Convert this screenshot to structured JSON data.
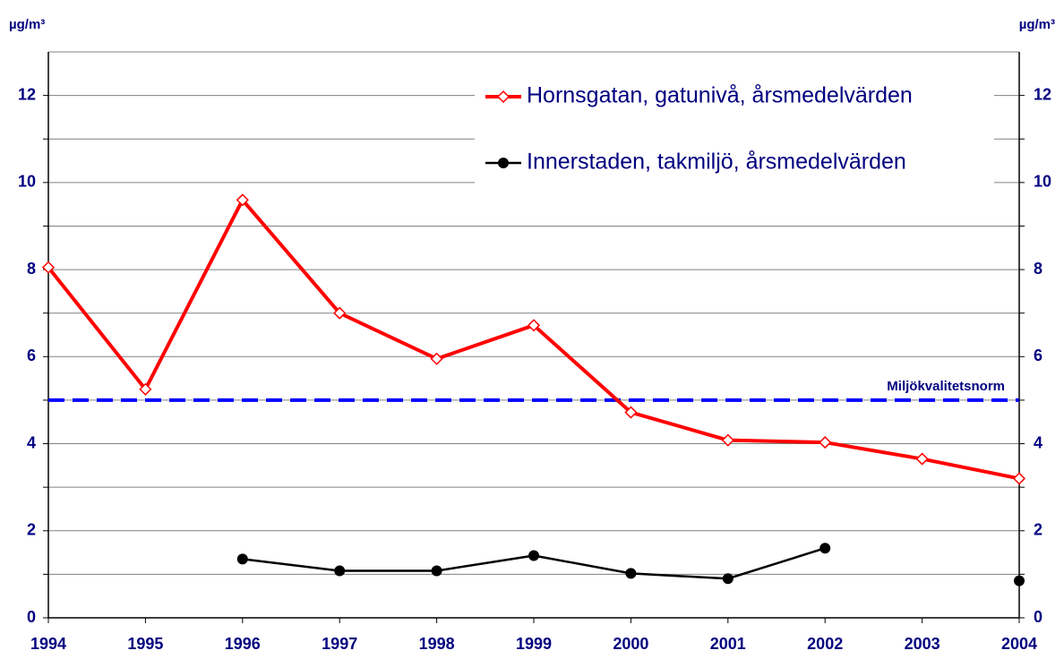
{
  "chart_data": {
    "type": "line",
    "y_label": "µg/m³",
    "y2_label": "µg/m³",
    "x": [
      1994,
      1995,
      1996,
      1997,
      1998,
      1999,
      2000,
      2001,
      2002,
      2003,
      2004
    ],
    "xlim": [
      1994,
      2004
    ],
    "xticks": [
      1994,
      1995,
      1996,
      1997,
      1998,
      1999,
      2000,
      2001,
      2002,
      2003,
      2004
    ],
    "ylim": [
      0,
      13
    ],
    "yticks": [
      0,
      2,
      4,
      6,
      8,
      10,
      12
    ],
    "minor_yticks": [
      1,
      3,
      5,
      7,
      9,
      11
    ],
    "y2lim": [
      0,
      13
    ],
    "y2ticks": [
      0,
      2,
      4,
      6,
      8,
      10,
      12
    ],
    "grid": true,
    "legend": "upper right",
    "series": [
      {
        "name": "Hornsgatan, gatunivå, årsmedelvärden",
        "color": "#ff0000",
        "marker": "diamond",
        "values": [
          8.05,
          5.25,
          9.6,
          7.0,
          5.95,
          6.72,
          4.72,
          4.08,
          4.03,
          3.65,
          3.2
        ]
      },
      {
        "name": "Innerstaden, takmiljö, årsmedelvärden",
        "color": "#000000",
        "marker": "circle",
        "values": [
          null,
          null,
          1.35,
          1.08,
          1.08,
          1.43,
          1.02,
          0.9,
          1.6,
          null,
          0.85
        ]
      }
    ],
    "reference_lines": [
      {
        "value": 5,
        "label": "Miljökvalitetsnorm",
        "color": "#0000ff"
      }
    ]
  }
}
